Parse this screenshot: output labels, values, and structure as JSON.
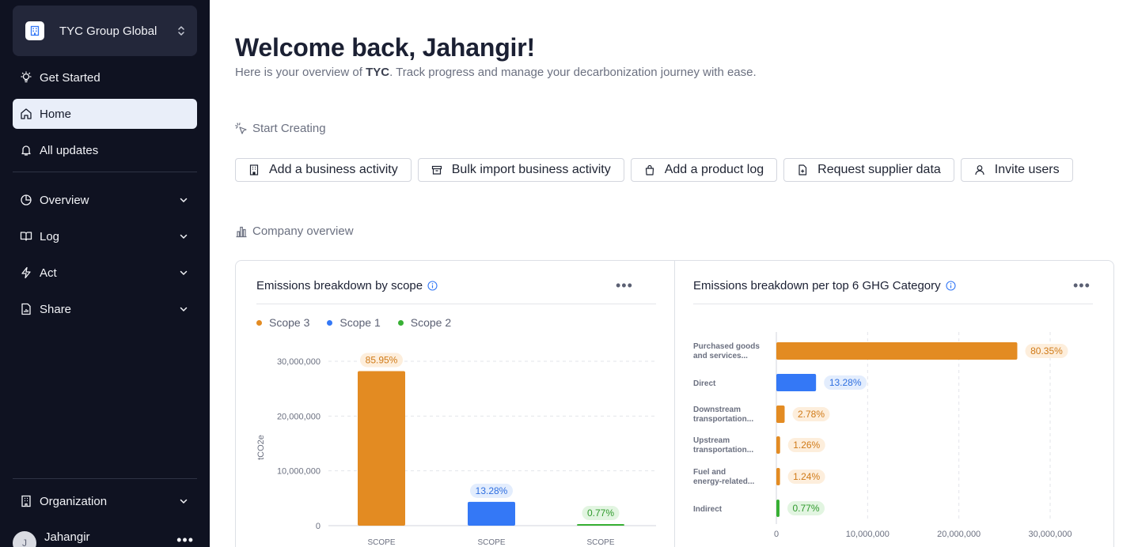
{
  "sidebar": {
    "org_name": "TYC Group Global",
    "top_items": [
      {
        "label": "Get Started",
        "icon": "lightbulb-icon"
      },
      {
        "label": "Home",
        "icon": "home-icon",
        "active": true
      },
      {
        "label": "All updates",
        "icon": "bell-icon"
      }
    ],
    "groups": [
      {
        "label": "Overview",
        "icon": "pie-chart-icon"
      },
      {
        "label": "Log",
        "icon": "book-icon"
      },
      {
        "label": "Act",
        "icon": "lightning-icon"
      },
      {
        "label": "Share",
        "icon": "file-chart-icon"
      }
    ],
    "organization_label": "Organization",
    "user": {
      "name": "Jahangir",
      "initial": "J"
    }
  },
  "header": {
    "title": "Welcome back, Jahangir!",
    "subtitle_prefix": "Here is your overview of ",
    "subtitle_company": "TYC",
    "subtitle_suffix": ". Track progress and manage your decarbonization journey with ease."
  },
  "start_creating": {
    "heading": "Start Creating",
    "actions": [
      {
        "label": "Add a business activity",
        "icon": "building-icon"
      },
      {
        "label": "Bulk import business activity",
        "icon": "archive-icon"
      },
      {
        "label": "Add a product log",
        "icon": "bag-icon"
      },
      {
        "label": "Request supplier data",
        "icon": "file-plus-icon"
      },
      {
        "label": "Invite users",
        "icon": "user-icon"
      }
    ]
  },
  "company_overview": {
    "heading": "Company overview"
  },
  "colors": {
    "scope3": "#e38b22",
    "scope1": "#3478f6",
    "scope2": "#38b034"
  },
  "chart_data": [
    {
      "type": "bar",
      "title": "Emissions breakdown by scope",
      "legend": [
        "Scope 3",
        "Scope 1",
        "Scope 2"
      ],
      "categories": [
        "SCOPE",
        "SCOPE",
        "SCOPE"
      ],
      "series": [
        {
          "name": "Scope 3",
          "value": 28200000,
          "label": "85.95%"
        },
        {
          "name": "Scope 1",
          "value": 4350000,
          "label": "13.28%"
        },
        {
          "name": "Scope 2",
          "value": 250000,
          "label": "0.77%"
        }
      ],
      "ylabel": "tCO2e",
      "yticks": [
        "0",
        "10,000,000",
        "20,000,000",
        "30,000,000"
      ],
      "ylim": [
        0,
        30000000
      ],
      "grid": true
    },
    {
      "type": "bar",
      "orientation": "horizontal",
      "title": "Emissions breakdown per top 6 GHG Category",
      "categories": [
        {
          "line1": "Purchased goods",
          "line2": "and services..."
        },
        {
          "line1": "Direct",
          "line2": ""
        },
        {
          "line1": "Downstream",
          "line2": "transportation..."
        },
        {
          "line1": "Upstream",
          "line2": "transportation..."
        },
        {
          "line1": "Fuel and",
          "line2": "energy-related..."
        },
        {
          "line1": "Indirect",
          "line2": ""
        }
      ],
      "values": [
        26400000,
        4350000,
        910000,
        410000,
        400000,
        250000
      ],
      "labels": [
        "80.35%",
        "13.28%",
        "2.78%",
        "1.26%",
        "1.24%",
        "0.77%"
      ],
      "colors": [
        "#e38b22",
        "#3478f6",
        "#e38b22",
        "#e38b22",
        "#e38b22",
        "#38b034"
      ],
      "xticks": [
        "0",
        "10,000,000",
        "20,000,000",
        "30,000,000"
      ],
      "xlim": [
        0,
        30000000
      ],
      "grid": true
    }
  ]
}
